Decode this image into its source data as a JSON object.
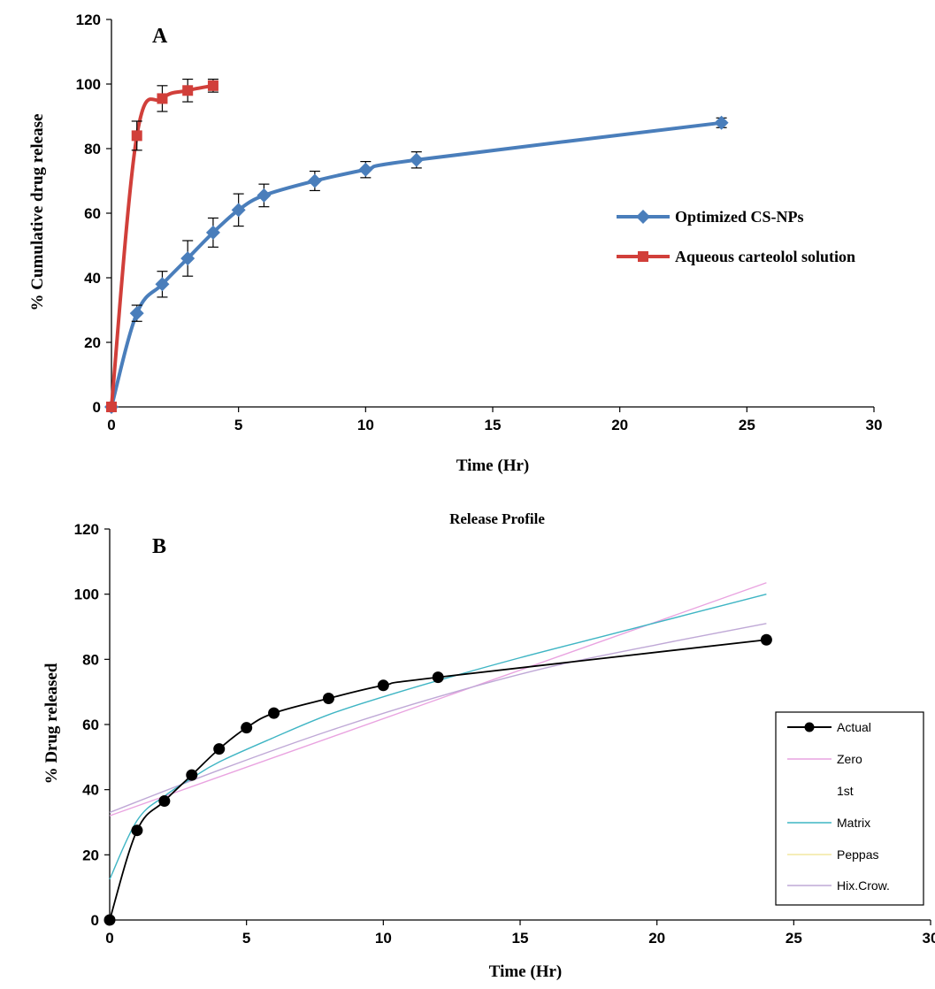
{
  "chart_data": [
    {
      "type": "line",
      "panel_label": "A",
      "title": "",
      "xlabel": "Time (Hr)",
      "ylabel": "% Cumulative drug release",
      "xlim": [
        0,
        30
      ],
      "ylim": [
        0,
        120
      ],
      "xticks": [
        0,
        5,
        10,
        15,
        20,
        25,
        30
      ],
      "yticks": [
        0,
        20,
        40,
        60,
        80,
        100,
        120
      ],
      "grid": false,
      "legend_position": "right",
      "series": [
        {
          "name": "Optimized CS-NPs",
          "color": "#4a7ebb",
          "marker": "diamond",
          "x": [
            0,
            1,
            2,
            3,
            4,
            5,
            6,
            8,
            10,
            12,
            24
          ],
          "y": [
            0,
            29,
            38,
            46,
            54,
            61,
            65.5,
            70,
            73.5,
            76.5,
            88
          ],
          "err": [
            0,
            2.5,
            4,
            5.5,
            4.5,
            5,
            3.5,
            3,
            2.5,
            2.5,
            1.5
          ]
        },
        {
          "name": "Aqueous carteolol solution",
          "color": "#d13f3a",
          "marker": "square",
          "x": [
            0,
            1,
            2,
            3,
            4
          ],
          "y": [
            0,
            84,
            95.5,
            98,
            99.5
          ],
          "err": [
            0,
            4.5,
            4,
            3.5,
            2
          ]
        }
      ]
    },
    {
      "type": "line",
      "panel_label": "B",
      "title": "Release Profile",
      "xlabel": "Time (Hr)",
      "ylabel": "% Drug released",
      "xlim": [
        0,
        30
      ],
      "ylim": [
        0,
        120
      ],
      "xticks": [
        0,
        5,
        10,
        15,
        20,
        25,
        30
      ],
      "yticks": [
        0,
        20,
        40,
        60,
        80,
        100,
        120
      ],
      "grid": false,
      "legend_position": "right",
      "series": [
        {
          "name": "Actual",
          "color": "#000000",
          "marker": "circle",
          "x": [
            0,
            1,
            2,
            3,
            4,
            5,
            6,
            8,
            10,
            12,
            24
          ],
          "y": [
            0,
            27.5,
            36.5,
            44.5,
            52.5,
            59,
            63.5,
            68,
            72,
            74.5,
            86
          ]
        },
        {
          "name": "Zero",
          "color": "#e9a3e0",
          "marker": "none",
          "x": [
            0,
            24
          ],
          "y": [
            32,
            103.5
          ]
        },
        {
          "name": "1st",
          "color": "#ffffff",
          "marker": "none",
          "x": [],
          "y": []
        },
        {
          "name": "Matrix",
          "color": "#3fb5c4",
          "marker": "none",
          "x": [
            0,
            1,
            2,
            3,
            4,
            6,
            8,
            10,
            12,
            15,
            18,
            21,
            24
          ],
          "y": [
            12.5,
            30.5,
            38,
            43.5,
            48.5,
            56,
            63,
            68.5,
            73.5,
            80.5,
            87,
            93.5,
            100
          ]
        },
        {
          "name": "Peppas",
          "color": "#f2e7a1",
          "marker": "none",
          "x": [],
          "y": []
        },
        {
          "name": "Hix.Crow.",
          "color": "#bfa8d6",
          "marker": "none",
          "x": [
            0,
            4,
            8,
            12,
            16,
            20,
            24
          ],
          "y": [
            33,
            46,
            58,
            68.5,
            77.5,
            84.5,
            91
          ]
        }
      ]
    }
  ],
  "legend_b_labels": [
    "Actual",
    "Zero",
    "1st",
    "Matrix",
    "Peppas",
    "Hix.Crow."
  ]
}
